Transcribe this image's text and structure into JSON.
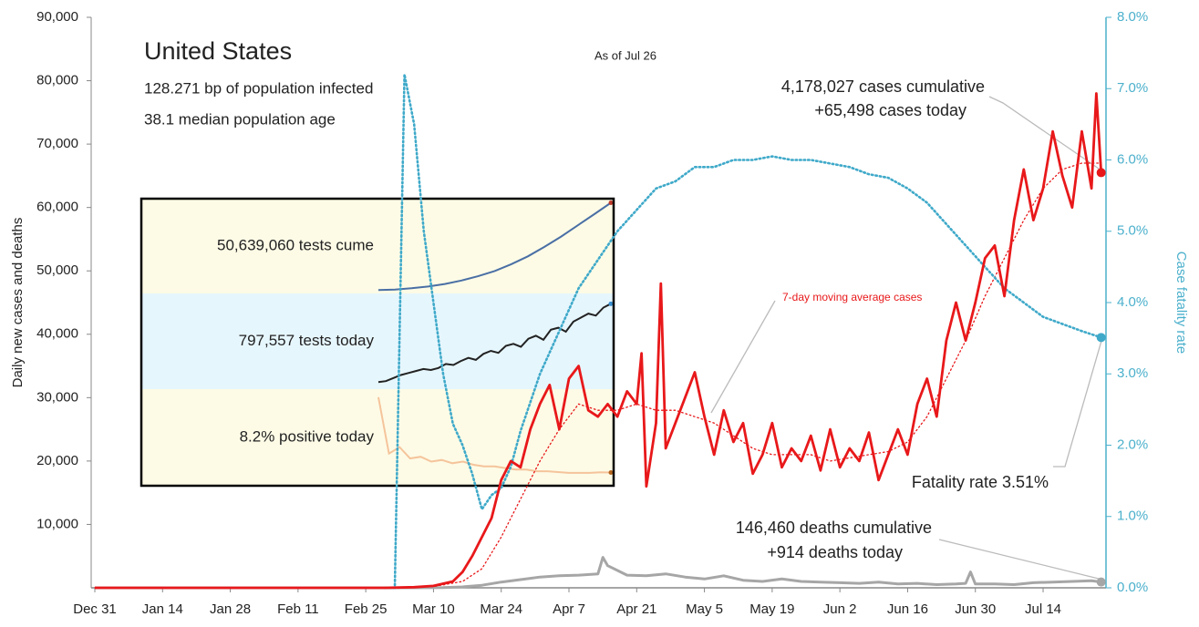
{
  "chart_data": [
    {
      "type": "line",
      "title": "United States",
      "notes": [
        "128.271 bp of population infected",
        "38.1 median population age"
      ],
      "date_note": "As of Jul 26",
      "annotations": [
        "4,178,027 cases cumulative",
        "+65,498 cases today",
        "7-day moving average cases",
        "Fatality rate 3.51%",
        "146,460 deaths cumulative",
        "+914 deaths today"
      ],
      "ylabel": "Daily new cases and deaths",
      "y2label": "Case fatality rate",
      "xlim": [
        0,
        209
      ],
      "xticks": [
        {
          "value": 0,
          "label": "Dec 31"
        },
        {
          "value": 14,
          "label": "Jan 14"
        },
        {
          "value": 28,
          "label": "Jan 28"
        },
        {
          "value": 42,
          "label": "Feb 11"
        },
        {
          "value": 56,
          "label": "Feb 25"
        },
        {
          "value": 70,
          "label": "Mar 10"
        },
        {
          "value": 84,
          "label": "Mar 24"
        },
        {
          "value": 98,
          "label": "Apr 7"
        },
        {
          "value": 112,
          "label": "Apr 21"
        },
        {
          "value": 126,
          "label": "May 5"
        },
        {
          "value": 140,
          "label": "May 19"
        },
        {
          "value": 154,
          "label": "Jun 2"
        },
        {
          "value": 168,
          "label": "Jun 16"
        },
        {
          "value": 182,
          "label": "Jun 30"
        },
        {
          "value": 196,
          "label": "Jul 14"
        }
      ],
      "ylim": [
        0,
        90000
      ],
      "yticks": [
        {
          "value": 10000,
          "label": "10,000"
        },
        {
          "value": 20000,
          "label": "20,000"
        },
        {
          "value": 30000,
          "label": "30,000"
        },
        {
          "value": 40000,
          "label": "40,000"
        },
        {
          "value": 50000,
          "label": "50,000"
        },
        {
          "value": 60000,
          "label": "60,000"
        },
        {
          "value": 70000,
          "label": "70,000"
        },
        {
          "value": 80000,
          "label": "80,000"
        },
        {
          "value": 90000,
          "label": "90,000"
        }
      ],
      "y2lim": [
        0,
        8
      ],
      "y2ticks": [
        {
          "value": 0,
          "label": "0.0%"
        },
        {
          "value": 1,
          "label": "1.0%"
        },
        {
          "value": 2,
          "label": "2.0%"
        },
        {
          "value": 3,
          "label": "3.0%"
        },
        {
          "value": 4,
          "label": "4.0%"
        },
        {
          "value": 5,
          "label": "5.0%"
        },
        {
          "value": 6,
          "label": "6.0%"
        },
        {
          "value": 7,
          "label": "7.0%"
        },
        {
          "value": 8,
          "label": "8.0%"
        }
      ],
      "y2color": "#4bb0cc",
      "series": [
        {
          "color": "#e8181a",
          "width": 2.8,
          "dash": false,
          "end_marker": true,
          "x": [
            0,
            60,
            66,
            70,
            74,
            76,
            78,
            80,
            82,
            84,
            86,
            88,
            90,
            92,
            94,
            96,
            98,
            100,
            102,
            104,
            106,
            108,
            110,
            112,
            113,
            114,
            116,
            117,
            118,
            120,
            122,
            124,
            126,
            128,
            130,
            132,
            134,
            136,
            138,
            140,
            142,
            144,
            146,
            148,
            150,
            152,
            154,
            156,
            158,
            160,
            162,
            164,
            166,
            168,
            170,
            172,
            174,
            176,
            178,
            180,
            182,
            184,
            186,
            188,
            190,
            192,
            194,
            196,
            198,
            200,
            202,
            204,
            206,
            207,
            208
          ],
          "values": [
            0,
            0,
            100,
            300,
            1000,
            2500,
            5000,
            8000,
            11000,
            17000,
            20000,
            19000,
            25000,
            29000,
            32000,
            25000,
            33000,
            35000,
            28000,
            27000,
            29000,
            27000,
            31000,
            29000,
            37000,
            16000,
            26000,
            48000,
            22000,
            26000,
            30000,
            34000,
            27000,
            21000,
            28000,
            23000,
            26000,
            18000,
            21000,
            26000,
            19000,
            22000,
            20000,
            24000,
            18500,
            25000,
            19000,
            22000,
            20000,
            24500,
            17000,
            21000,
            25000,
            21000,
            29000,
            33000,
            27000,
            39000,
            45000,
            39000,
            45000,
            52000,
            54000,
            46000,
            58000,
            66000,
            58000,
            63000,
            72000,
            65000,
            60000,
            72000,
            63000,
            78000,
            65498
          ]
        },
        {
          "color": "#e8181a",
          "width": 1.3,
          "dash": true,
          "end_marker": false,
          "x": [
            0,
            60,
            70,
            76,
            80,
            84,
            88,
            92,
            96,
            100,
            104,
            108,
            112,
            116,
            120,
            124,
            128,
            132,
            136,
            140,
            144,
            148,
            152,
            156,
            160,
            164,
            168,
            172,
            176,
            180,
            184,
            188,
            192,
            196,
            200,
            204,
            208
          ],
          "values": [
            0,
            0,
            200,
            1000,
            3000,
            8000,
            14000,
            20000,
            25000,
            29000,
            28000,
            28000,
            29000,
            28000,
            28000,
            27000,
            26000,
            24000,
            22000,
            21000,
            21000,
            21000,
            20000,
            20500,
            21000,
            21500,
            23000,
            27000,
            33000,
            39000,
            46000,
            52000,
            58000,
            63000,
            66000,
            67000,
            67000
          ]
        },
        {
          "color": "#a6a6a6",
          "width": 3,
          "dash": false,
          "end_marker": true,
          "x": [
            0,
            60,
            68,
            72,
            76,
            80,
            84,
            88,
            92,
            96,
            100,
            104,
            105,
            106,
            110,
            114,
            118,
            122,
            126,
            130,
            134,
            138,
            142,
            146,
            150,
            154,
            158,
            162,
            166,
            170,
            174,
            178,
            180,
            181,
            182,
            186,
            190,
            194,
            198,
            202,
            206,
            208
          ],
          "values": [
            0,
            0,
            10,
            50,
            150,
            400,
            900,
            1300,
            1700,
            1900,
            2000,
            2200,
            4800,
            3500,
            2000,
            1900,
            2200,
            1700,
            1400,
            1900,
            1200,
            1000,
            1400,
            1000,
            900,
            800,
            700,
            900,
            600,
            700,
            500,
            600,
            700,
            2500,
            600,
            600,
            500,
            800,
            900,
            1000,
            1100,
            914
          ]
        },
        {
          "color": "#3fa9c9",
          "width": 2.6,
          "dash": true,
          "end_marker": true,
          "axis": "y2",
          "x": [
            60,
            62,
            64,
            66,
            68,
            70,
            72,
            74,
            76,
            78,
            80,
            82,
            84,
            86,
            88,
            90,
            92,
            94,
            96,
            98,
            100,
            104,
            108,
            112,
            116,
            120,
            124,
            128,
            132,
            136,
            140,
            144,
            148,
            152,
            156,
            160,
            164,
            168,
            172,
            176,
            180,
            184,
            188,
            192,
            196,
            200,
            204,
            208
          ],
          "values": [
            0,
            0,
            7.2,
            6.5,
            5.0,
            4.0,
            3.0,
            2.3,
            2.0,
            1.6,
            1.1,
            1.3,
            1.4,
            1.7,
            2.2,
            2.6,
            3.0,
            3.3,
            3.6,
            3.9,
            4.2,
            4.6,
            5.0,
            5.3,
            5.6,
            5.7,
            5.9,
            5.9,
            6.0,
            6.0,
            6.05,
            6.0,
            6.0,
            5.95,
            5.9,
            5.8,
            5.75,
            5.6,
            5.4,
            5.1,
            4.8,
            4.5,
            4.2,
            4.0,
            3.8,
            3.7,
            3.6,
            3.51
          ]
        }
      ]
    },
    {
      "type": "line",
      "series": [
        {
          "label": "50,639,060 tests cume",
          "color": "#4a6fa5",
          "marker_color": "#c0392b",
          "ylim": [
            -2000000,
            53000000
          ],
          "values": [
            0,
            300000,
            1000000,
            2000000,
            3500000,
            5500000,
            8000000,
            11000000,
            15000000,
            19500000,
            25000000,
            31000000,
            37500000,
            44000000,
            50639060
          ]
        },
        {
          "label": "797,557 tests today",
          "color": "#222222",
          "marker_color": "#3a8fd0",
          "ylim": [
            -50000,
            900000
          ],
          "values": [
            20000,
            30000,
            60000,
            90000,
            110000,
            130000,
            150000,
            140000,
            160000,
            200000,
            190000,
            230000,
            260000,
            240000,
            300000,
            330000,
            310000,
            380000,
            400000,
            370000,
            450000,
            480000,
            440000,
            540000,
            560000,
            520000,
            620000,
            660000,
            700000,
            680000,
            760000,
            797557
          ]
        },
        {
          "label": "8.2% positive today",
          "color": "#f5c49b",
          "marker_color": "#b5651d",
          "ylim": [
            0,
            60
          ],
          "values": [
            55,
            20,
            24,
            17,
            18,
            15,
            16,
            14,
            15,
            13,
            12,
            12,
            11,
            10,
            10,
            9,
            9,
            8.5,
            8,
            8,
            8,
            8.3,
            8.2
          ]
        }
      ]
    }
  ]
}
